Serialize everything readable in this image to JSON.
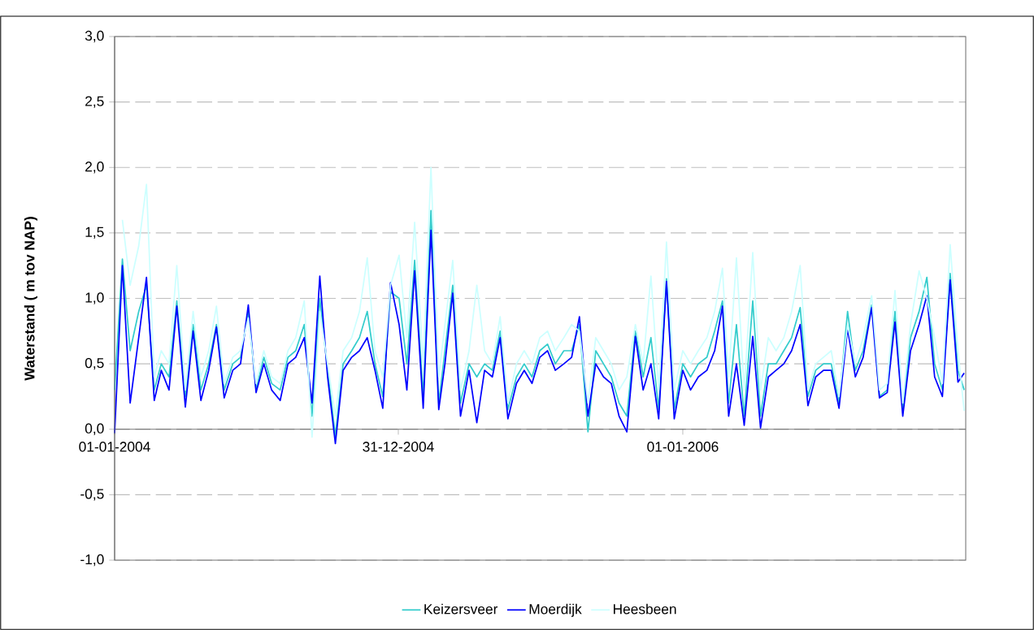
{
  "chart_data": {
    "type": "line",
    "ylabel": "Waterstand ( m tov NAP)",
    "x": [
      "2004-01-01",
      "2004-01-11",
      "2004-01-21",
      "2004-02-01",
      "2004-02-11",
      "2004-02-21",
      "2004-03-01",
      "2004-03-11",
      "2004-03-21",
      "2004-04-01",
      "2004-04-11",
      "2004-04-21",
      "2004-05-01",
      "2004-05-11",
      "2004-05-21",
      "2004-06-01",
      "2004-06-11",
      "2004-06-21",
      "2004-07-01",
      "2004-07-11",
      "2004-07-21",
      "2004-08-01",
      "2004-08-11",
      "2004-08-21",
      "2004-09-01",
      "2004-09-11",
      "2004-09-21",
      "2004-10-01",
      "2004-10-11",
      "2004-10-21",
      "2004-11-01",
      "2004-11-11",
      "2004-11-21",
      "2004-12-01",
      "2004-12-11",
      "2004-12-21",
      "2005-01-01",
      "2005-01-11",
      "2005-01-21",
      "2005-02-01",
      "2005-02-11",
      "2005-02-21",
      "2005-03-01",
      "2005-03-11",
      "2005-03-21",
      "2005-04-01",
      "2005-04-11",
      "2005-04-21",
      "2005-05-01",
      "2005-05-11",
      "2005-05-21",
      "2005-06-01",
      "2005-06-11",
      "2005-06-21",
      "2005-07-01",
      "2005-07-11",
      "2005-07-21",
      "2005-08-01",
      "2005-08-11",
      "2005-08-21",
      "2005-09-01",
      "2005-09-11",
      "2005-09-21",
      "2005-10-01",
      "2005-10-11",
      "2005-10-21",
      "2005-11-01",
      "2005-11-11",
      "2005-11-21",
      "2005-12-01",
      "2005-12-11",
      "2005-12-21",
      "2006-01-01",
      "2006-01-11",
      "2006-01-21",
      "2006-02-01",
      "2006-02-11",
      "2006-02-21",
      "2006-03-01",
      "2006-03-11",
      "2006-03-21",
      "2006-04-01",
      "2006-04-11",
      "2006-04-21",
      "2006-05-01",
      "2006-05-11",
      "2006-05-21",
      "2006-06-01",
      "2006-06-11",
      "2006-06-21",
      "2006-07-01",
      "2006-07-11",
      "2006-07-21",
      "2006-08-01",
      "2006-08-11",
      "2006-08-21",
      "2006-09-01",
      "2006-09-11",
      "2006-09-21",
      "2006-10-01",
      "2006-10-11",
      "2006-10-21",
      "2006-11-01",
      "2006-11-11",
      "2006-11-21",
      "2006-12-01",
      "2006-12-11",
      "2006-12-21",
      "2006-12-29"
    ],
    "series": [
      {
        "name": "Keizersveer",
        "color": "#33cccc",
        "values": [
          0.3,
          1.3,
          0.6,
          0.9,
          1.1,
          0.3,
          0.5,
          0.4,
          0.98,
          0.25,
          0.8,
          0.3,
          0.5,
          0.8,
          0.3,
          0.5,
          0.55,
          0.9,
          0.3,
          0.55,
          0.35,
          0.3,
          0.55,
          0.6,
          0.8,
          0.1,
          1.0,
          0.45,
          -0.05,
          0.5,
          0.6,
          0.7,
          0.9,
          0.5,
          0.25,
          1.05,
          1.0,
          0.5,
          1.29,
          0.25,
          1.67,
          0.2,
          0.6,
          1.1,
          0.2,
          0.5,
          0.4,
          0.5,
          0.45,
          0.75,
          0.15,
          0.4,
          0.5,
          0.4,
          0.6,
          0.65,
          0.5,
          0.6,
          0.6,
          0.8,
          -0.02,
          0.6,
          0.5,
          0.4,
          0.2,
          0.1,
          0.75,
          0.4,
          0.7,
          0.15,
          1.15,
          0.15,
          0.5,
          0.4,
          0.5,
          0.55,
          0.75,
          0.98,
          0.2,
          0.8,
          0.1,
          0.98,
          0.1,
          0.5,
          0.5,
          0.6,
          0.7,
          0.93,
          0.25,
          0.45,
          0.5,
          0.5,
          0.2,
          0.9,
          0.45,
          0.6,
          0.95,
          0.25,
          0.3,
          0.9,
          0.15,
          0.7,
          0.9,
          1.16,
          0.5,
          0.3,
          1.19,
          0.45,
          0.3
        ]
      },
      {
        "name": "Moerdijk",
        "color": "#0000ff",
        "values": [
          -0.03,
          1.25,
          0.2,
          0.7,
          1.16,
          0.22,
          0.45,
          0.3,
          0.94,
          0.17,
          0.75,
          0.22,
          0.45,
          0.78,
          0.24,
          0.45,
          0.5,
          0.95,
          0.28,
          0.5,
          0.3,
          0.22,
          0.5,
          0.55,
          0.7,
          0.2,
          1.17,
          0.4,
          -0.11,
          0.45,
          0.55,
          0.6,
          0.7,
          0.45,
          0.16,
          1.12,
          0.8,
          0.3,
          1.21,
          0.16,
          1.52,
          0.15,
          0.5,
          1.04,
          0.1,
          0.45,
          0.05,
          0.45,
          0.4,
          0.7,
          0.08,
          0.35,
          0.45,
          0.35,
          0.55,
          0.6,
          0.45,
          0.5,
          0.55,
          0.86,
          0.1,
          0.5,
          0.4,
          0.35,
          0.1,
          -0.02,
          0.71,
          0.3,
          0.5,
          0.08,
          1.13,
          0.08,
          0.45,
          0.3,
          0.4,
          0.45,
          0.6,
          0.94,
          0.1,
          0.5,
          0.03,
          0.71,
          0.01,
          0.4,
          0.45,
          0.5,
          0.6,
          0.8,
          0.18,
          0.4,
          0.45,
          0.45,
          0.16,
          0.77,
          0.4,
          0.55,
          0.93,
          0.24,
          0.28,
          0.82,
          0.1,
          0.6,
          0.8,
          1.02,
          0.4,
          0.25,
          1.14,
          0.36,
          0.43
        ]
      },
      {
        "name": "Heesbeen",
        "color": "#ccffff",
        "values": [
          null,
          1.6,
          1.1,
          1.4,
          1.87,
          0.4,
          0.6,
          0.5,
          1.25,
          0.3,
          0.9,
          0.4,
          0.6,
          0.94,
          0.35,
          0.55,
          0.6,
          0.85,
          0.35,
          0.6,
          0.4,
          0.35,
          0.6,
          0.7,
          0.98,
          -0.06,
          0.9,
          0.5,
          0.1,
          0.6,
          0.7,
          0.9,
          1.31,
          0.6,
          0.4,
          1.1,
          1.33,
          0.7,
          1.58,
          0.5,
          2.0,
          0.4,
          0.8,
          1.29,
          0.3,
          0.6,
          1.1,
          0.6,
          0.5,
          0.86,
          0.2,
          0.5,
          0.6,
          0.5,
          0.7,
          0.75,
          0.6,
          0.7,
          0.8,
          0.75,
          0.2,
          0.7,
          0.6,
          0.5,
          0.3,
          0.4,
          0.8,
          0.5,
          1.17,
          0.3,
          1.43,
          0.3,
          0.6,
          0.5,
          0.6,
          0.7,
          0.9,
          1.23,
          0.4,
          1.31,
          0.3,
          1.35,
          0.3,
          0.7,
          0.6,
          0.7,
          0.9,
          1.25,
          0.3,
          0.5,
          0.55,
          0.6,
          0.25,
          0.8,
          0.5,
          0.7,
          1.02,
          0.3,
          0.35,
          1.06,
          0.2,
          0.8,
          1.21,
          1.0,
          0.7,
          0.35,
          1.41,
          0.6,
          0.14
        ]
      }
    ],
    "xlim": [
      "2004-01-01",
      "2006-12-31"
    ],
    "xticks": [
      {
        "value": "2004-01-01",
        "label": "01-01-2004"
      },
      {
        "value": "2004-12-31",
        "label": "31-12-2004"
      },
      {
        "value": "2006-01-01",
        "label": "01-01-2006"
      }
    ],
    "ylim": [
      -1,
      3
    ],
    "yticks": [
      {
        "value": -1,
        "label": "-1,0"
      },
      {
        "value": -0.5,
        "label": "-0,5"
      },
      {
        "value": 0,
        "label": "0,0"
      },
      {
        "value": 0.5,
        "label": "0,5"
      },
      {
        "value": 1,
        "label": "1,0"
      },
      {
        "value": 1.5,
        "label": "1,5"
      },
      {
        "value": 2,
        "label": "2,0"
      },
      {
        "value": 2.5,
        "label": "2,5"
      },
      {
        "value": 3,
        "label": "3,0"
      }
    ],
    "grid": "y",
    "legend": "bottom",
    "marker": "none",
    "line_style": "solid"
  }
}
